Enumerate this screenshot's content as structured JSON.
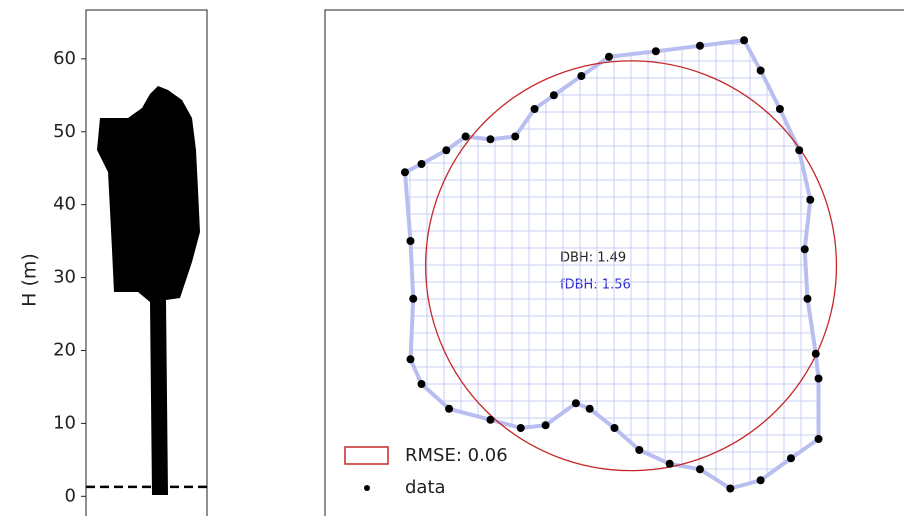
{
  "chart_data": [
    {
      "type": "profile",
      "y_label": "H (m)",
      "ylim": [
        -2.7,
        66.7
      ],
      "yticks": [
        0,
        10,
        20,
        30,
        40,
        50,
        60
      ],
      "hline": 1.3
    },
    {
      "type": "scatter",
      "xlim": [
        -1.11,
        0.99
      ],
      "ylim": [
        -0.91,
        0.93
      ],
      "x": [
        -0.82,
        -0.8,
        -0.79,
        -0.8,
        -0.76,
        -0.66,
        -0.51,
        -0.4,
        -0.31,
        -0.2,
        -0.15,
        -0.06,
        0.03,
        0.14,
        0.25,
        0.36,
        0.47,
        0.58,
        0.68,
        0.68,
        0.67,
        0.64,
        0.63,
        0.65,
        0.61,
        0.54,
        0.47,
        0.41,
        0.25,
        0.09,
        -0.08,
        -0.18,
        -0.28,
        -0.35,
        -0.42,
        -0.51,
        -0.6,
        -0.67,
        -0.76
      ],
      "y": [
        0.34,
        0.09,
        -0.12,
        -0.34,
        -0.43,
        -0.52,
        -0.56,
        -0.59,
        -0.58,
        -0.5,
        -0.52,
        -0.59,
        -0.67,
        -0.72,
        -0.74,
        -0.81,
        -0.78,
        -0.7,
        -0.63,
        -0.41,
        -0.32,
        -0.12,
        0.06,
        0.24,
        0.42,
        0.57,
        0.71,
        0.82,
        0.8,
        0.78,
        0.76,
        0.69,
        0.62,
        0.57,
        0.47,
        0.46,
        0.47,
        0.42,
        0.37
      ],
      "fit_circle": {
        "cx": 0,
        "cy": 0,
        "r": 0.745
      },
      "circle_color": "#c62828",
      "hull_color": "#b8bff0",
      "point_color": "#000000",
      "annotations": [
        "DBH: 1.49",
        "fDBH: 1.56"
      ],
      "legend": [
        "RMSE: 0.06",
        "data"
      ]
    }
  ]
}
